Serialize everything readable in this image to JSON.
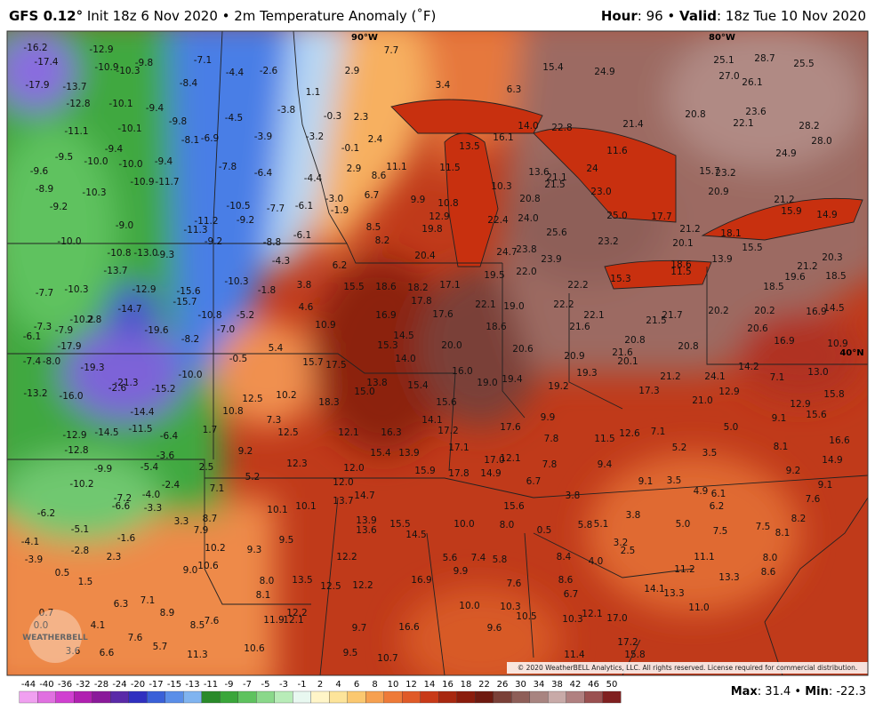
{
  "header": {
    "title_bold": "GFS 0.12°",
    "title_rest": " Init 18z 6 Nov 2020 • 2m Temperature Anomaly (˚F)",
    "hour_label": "Hour",
    "hour_value": ": 96 • ",
    "valid_label": "Valid",
    "valid_value": ": 18z Tue 10 Nov 2020"
  },
  "map": {
    "grid_labels": [
      "90°W",
      "80°W",
      "40°N"
    ],
    "values": [
      "-16.2",
      "-17.4",
      "-17.9",
      "-13.7",
      "-12.8",
      "-12.9",
      "-10.9",
      "-10.3",
      "-9.8",
      "-7.1",
      "-4.4",
      "-2.6",
      "-8.4",
      "-10.1",
      "-9.4",
      "-9.8",
      "-4.5",
      "-3.8",
      "1.1",
      "2.9",
      "-11.1",
      "-10.1",
      "-8.1",
      "-6.9",
      "-3.9",
      "-3.2",
      "-0.3",
      "2.3",
      "2.4",
      "-0.1",
      "2.9",
      "-9.5",
      "-10.0",
      "-10.0",
      "-9.4",
      "-9.4",
      "-7.8",
      "-6.4",
      "-4.4",
      "-9.6",
      "-10.9",
      "-11.7",
      "-8.9",
      "-10.3",
      "-9.2",
      "-10.5",
      "-7.7",
      "-6.1",
      "-3.0",
      "-1.9",
      "6.7",
      "8.6",
      "11.1",
      "9.9",
      "8.5",
      "8.2",
      "-11.2",
      "-9.2",
      "-9.0",
      "-11.3",
      "-9.2",
      "-6.1",
      "-8.8",
      "-10.0",
      "-10.8",
      "-13.0",
      "-9.3",
      "-4.3",
      "6.2",
      "-13.7",
      "-10.3",
      "-1.8",
      "3.8",
      "-7.7",
      "-10.3",
      "-12.9",
      "-15.6",
      "-15.7",
      "-14.7",
      "-10.2",
      "2.8",
      "-7.3",
      "-7.9",
      "-6.1",
      "-19.6",
      "-10.8",
      "-5.2",
      "-7.0",
      "-8.2",
      "4.6",
      "10.9",
      "-17.9",
      "-7.4",
      "-8.0",
      "-19.3",
      "-21.3",
      "-2.6",
      "-15.2",
      "-10.0",
      "-0.5",
      "5.4",
      "15.7",
      "17.5",
      "-13.2",
      "-16.0",
      "-14.4",
      "12.5",
      "10.2",
      "10.8",
      "18.3",
      "7.3",
      "-11.5",
      "-14.5",
      "-12.9",
      "-6.4",
      "1.7",
      "12.5",
      "-12.8",
      "-3.6",
      "9.2",
      "-9.9",
      "-5.4",
      "2.5",
      "12.3",
      "5.2",
      "-10.2",
      "-2.4",
      "7.1",
      "-7.2",
      "-4.0",
      "-6.6",
      "-3.3",
      "-6.2",
      "10.1",
      "10.1",
      "13.7",
      "-5.1",
      "3.3",
      "8.7",
      "7.9",
      "-1.6",
      "9.5",
      "-4.1",
      "-2.8",
      "2.3",
      "10.2",
      "9.3",
      "-3.9",
      "10.6",
      "9.0",
      "0.5",
      "1.5",
      "8.0",
      "13.5",
      "8.1",
      "6.3",
      "7.1",
      "8.9",
      "12.2",
      "11.9",
      "12.1",
      "0.7",
      "0.0",
      "4.1",
      "8.5",
      "7.6",
      "7.6",
      "5.7",
      "10.6",
      "11.3",
      "3.6",
      "6.6",
      "9.5",
      "10.7",
      "9.7",
      "16.6",
      "18.6",
      "18.2",
      "17.1",
      "15.5",
      "17.8",
      "16.9",
      "17.6",
      "14.5",
      "15.3",
      "14.0",
      "13.8",
      "15.4",
      "15.0",
      "15.6",
      "14.1",
      "12.1",
      "16.3",
      "17.2",
      "17.1",
      "15.4",
      "13.9",
      "12.0",
      "15.9",
      "17.8",
      "14.9",
      "17.0",
      "12.1",
      "12.0",
      "14.7",
      "13.9",
      "13.6",
      "15.5",
      "14.5",
      "10.0",
      "8.0",
      "0.5",
      "12.2",
      "12.5",
      "12.2",
      "16.9",
      "5.6",
      "7.4",
      "5.8",
      "9.9",
      "7.6",
      "10.0",
      "10.3",
      "10.5",
      "9.6",
      "8.6",
      "8.4",
      "6.7",
      "10.3",
      "12.1",
      "17.0",
      "17.2",
      "15.8",
      "11.4",
      "4.0",
      "7.7",
      "3.4",
      "6.3",
      "15.4",
      "24.9",
      "14.0",
      "22.8",
      "16.1",
      "21.4",
      "20.8",
      "25.1",
      "28.7",
      "25.5",
      "27.0",
      "26.1",
      "23.6",
      "22.1",
      "28.2",
      "28.0",
      "24.9",
      "13.5",
      "11.5",
      "11.6",
      "13.6",
      "21.1",
      "21.5",
      "24",
      "15.7",
      "23.2",
      "10.3",
      "20.8",
      "23.0",
      "20.9",
      "21.2",
      "15.9",
      "14.9",
      "10.8",
      "12.9",
      "19.8",
      "22.4",
      "24.0",
      "25.0",
      "17.7",
      "25.6",
      "23.2",
      "21.2",
      "20.1",
      "18.1",
      "15.5",
      "20.4",
      "24.7",
      "23.8",
      "23.9",
      "18.6",
      "13.9",
      "21.2",
      "20.3",
      "19.5",
      "22.0",
      "22.2",
      "15.3",
      "11.5",
      "19.6",
      "18.5",
      "18.5",
      "22.1",
      "19.0",
      "22.2",
      "22.1",
      "21.6",
      "21.5",
      "21.7",
      "20.2",
      "20.2",
      "16.9",
      "14.5",
      "18.6",
      "20.0",
      "20.6",
      "20.8",
      "21.6",
      "20.1",
      "20.9",
      "20.8",
      "20.6",
      "16.9",
      "10.9",
      "16.0",
      "19.3",
      "14.2",
      "13.0",
      "24.1",
      "19.0",
      "19.4",
      "19.2",
      "17.3",
      "21.2",
      "12.9",
      "7.1",
      "15.8",
      "21.0",
      "12.9",
      "9.1",
      "15.6",
      "9.9",
      "17.6",
      "5.0",
      "7.8",
      "11.5",
      "12.6",
      "7.1",
      "8.1",
      "16.6",
      "7.8",
      "9.4",
      "5.2",
      "3.5",
      "14.9",
      "9.2",
      "6.7",
      "3.8",
      "9.1",
      "3.5",
      "4.9",
      "6.1",
      "9.1",
      "6.2",
      "7.6",
      "15.6",
      "3.8",
      "5.8",
      "5.1",
      "5.0",
      "8.2",
      "7.5",
      "7.5",
      "8.1",
      "3.2",
      "2.5",
      "11.1",
      "8.0",
      "11.2",
      "8.6",
      "13.3",
      "14.1",
      "13.3",
      "11.0"
    ]
  },
  "logo": "WEATHERBELL",
  "copyright": "© 2020 WeatherBELL Analytics, LLC. All rights reserved. License required for commercial distribution.",
  "colorbar": {
    "ticks": [
      -44,
      -40,
      -36,
      -32,
      -28,
      -24,
      -20,
      -17,
      -15,
      -13,
      -11,
      -9,
      -7,
      -5,
      -3,
      -1,
      2,
      4,
      6,
      8,
      10,
      12,
      14,
      16,
      18,
      22,
      26,
      30,
      34,
      38,
      42,
      46,
      50
    ],
    "colors": [
      "#f0a0f0",
      "#e070e0",
      "#d040d0",
      "#b020b0",
      "#8a1a9a",
      "#5a2aa8",
      "#3030c0",
      "#3a60d8",
      "#5a8ee8",
      "#80b4f0",
      "#2a8a2a",
      "#3aa63a",
      "#5ec25e",
      "#8ad88a",
      "#b8ecb8",
      "#e8f8f0",
      "#fff5c8",
      "#fde49a",
      "#fbc870",
      "#f6a050",
      "#ee7a38",
      "#e05a28",
      "#c83a18",
      "#a82810",
      "#8a1c0c",
      "#6e1a10",
      "#7a4038",
      "#8e5e58",
      "#a88480",
      "#c8aaa8",
      "#b08080",
      "#9a5050",
      "#802020"
    ]
  },
  "footer": {
    "max_label": "Max",
    "max_value": ": 31.4 • ",
    "min_label": "Min",
    "min_value": ": -22.3"
  }
}
